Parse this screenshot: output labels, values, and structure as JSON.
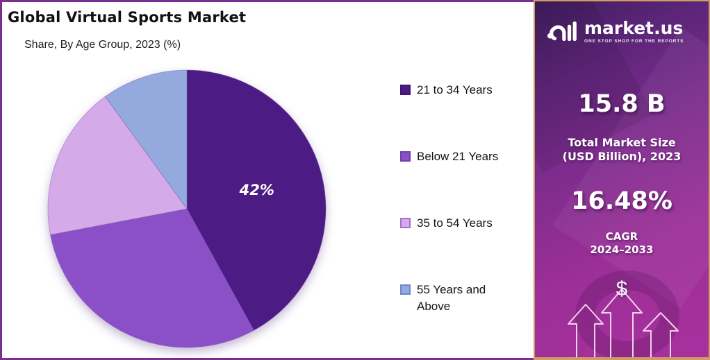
{
  "header": {
    "title": "Global Virtual Sports Market",
    "subtitle": "Share, By Age Group, 2023 (%)"
  },
  "chart_data": {
    "type": "pie",
    "title": "Global Virtual Sports Market",
    "subtitle": "Share, By Age Group, 2023 (%)",
    "unit": "percent",
    "categories": [
      "21 to 34 Years",
      "Below 21 Years",
      "35 to 54 Years",
      "55 Years and Above"
    ],
    "values": [
      42,
      30,
      18,
      10
    ],
    "colors": [
      "#4c1b83",
      "#8b50c7",
      "#d4aae9",
      "#94a9dd"
    ],
    "swatch_border_colors": [
      "#401470",
      "#6f3fac",
      "#a571cd",
      "#7287c5"
    ],
    "data_label": "42%",
    "data_label_slice_index": 0,
    "data_label_color": "#ffffff",
    "start_angle_deg": 0,
    "clockwise": true,
    "legend_position": "right"
  },
  "sidebar": {
    "brand": {
      "name": "market.us",
      "tagline": "ONE STOP SHOP FOR THE REPORTS"
    },
    "stats": [
      {
        "value": "15.8 B",
        "label_lines": [
          "Total Market Size",
          "(USD Billion), 2023"
        ]
      },
      {
        "value": "16.48%",
        "label_lines": [
          "CAGR",
          "2024–2033"
        ]
      }
    ],
    "dollar_symbol": "$",
    "colors": {
      "gradient_top": "#3f1d5e",
      "gradient_bottom": "#a8309e",
      "border_gold": "#cf9d5f",
      "text": "#ffffff"
    }
  },
  "frame": {
    "border_color": "#7b2e8f",
    "background": "#ffffff"
  }
}
